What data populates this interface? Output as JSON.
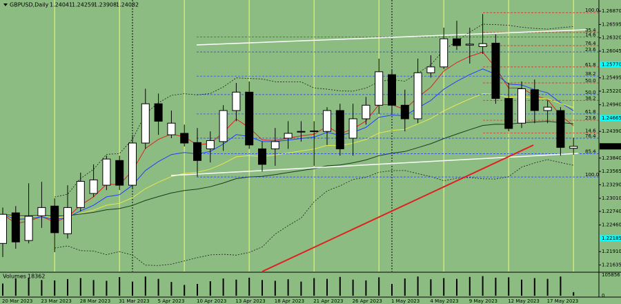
{
  "chart_data": {
    "type": "candlestick",
    "symbol": "GBPUSD,Daily",
    "categories": [
      "20 Mar 2023",
      null,
      null,
      "23 Mar 2023",
      null,
      null,
      "28 Mar 2023",
      null,
      null,
      "31 Mar 2023",
      null,
      null,
      "5 Apr 2023",
      null,
      null,
      "10 Apr 2023",
      null,
      null,
      "13 Apr 2023",
      null,
      null,
      "18 Apr 2023",
      null,
      null,
      "21 Apr 2023",
      null,
      null,
      "26 Apr 2023",
      null,
      null,
      "1 May 2023",
      null,
      null,
      "4 May 2023",
      null,
      null,
      "9 May 2023",
      null,
      null,
      "12 May 2023",
      null,
      null,
      "17 May 2023",
      null,
      null
    ],
    "open": [
      1.2208,
      1.2271,
      1.2214,
      1.2265,
      1.2285,
      1.2228,
      1.2282,
      1.2311,
      1.2328,
      1.2379,
      1.2328,
      1.2415,
      1.2496,
      1.2432,
      1.2435,
      1.2416,
      1.2403,
      1.2418,
      1.2482,
      1.252,
      1.2403,
      1.2403,
      1.2425,
      1.2438,
      1.2439,
      1.2439,
      1.2482,
      1.2425,
      1.2465,
      1.2493,
      1.2556,
      1.2493,
      1.2465,
      1.256,
      1.2572,
      1.263,
      1.2617,
      1.2614,
      1.2621,
      1.2507,
      1.2456,
      1.2525,
      1.2482,
      1.2482,
      1.24041
    ],
    "high": [
      1.2282,
      1.2285,
      1.2332,
      1.2335,
      1.2301,
      1.2328,
      1.2354,
      1.2371,
      1.2389,
      1.2389,
      1.2432,
      1.2527,
      1.2517,
      1.2482,
      1.2453,
      1.2446,
      1.2439,
      1.2493,
      1.2539,
      1.2542,
      1.2418,
      1.2446,
      1.246,
      1.246,
      1.246,
      1.2489,
      1.2496,
      1.2496,
      1.251,
      1.2589,
      1.2567,
      1.2525,
      1.2589,
      1.2596,
      1.2653,
      1.2667,
      1.2653,
      1.2681,
      1.2639,
      1.2539,
      1.2542,
      1.2546,
      1.2503,
      1.2489,
      1.24259
    ],
    "low": [
      1.218,
      1.2197,
      1.2208,
      1.224,
      1.219,
      1.2218,
      1.2274,
      1.2304,
      1.2318,
      1.2318,
      1.2322,
      1.2403,
      1.2432,
      1.2425,
      1.2408,
      1.2346,
      1.2375,
      1.2399,
      1.246,
      1.2403,
      1.2356,
      1.2368,
      1.2403,
      1.2418,
      1.2368,
      1.2411,
      1.2389,
      1.2389,
      1.2453,
      1.2475,
      1.2475,
      1.2439,
      1.2456,
      1.255,
      1.2567,
      1.2607,
      1.2579,
      1.2599,
      1.2496,
      1.2439,
      1.2446,
      1.2456,
      1.2456,
      1.2389,
      1.23908
    ],
    "close": [
      1.2268,
      1.2211,
      1.2264,
      1.2282,
      1.223,
      1.2282,
      1.2336,
      1.2339,
      1.2382,
      1.2328,
      1.2415,
      1.2496,
      1.246,
      1.2456,
      1.2415,
      1.2379,
      1.242,
      1.2482,
      1.252,
      1.2411,
      1.2371,
      1.2418,
      1.2435,
      1.2439,
      1.244,
      1.2482,
      1.2403,
      1.2465,
      1.2493,
      1.2562,
      1.2493,
      1.2465,
      1.256,
      1.2572,
      1.263,
      1.2616,
      1.2619,
      1.262,
      1.2507,
      1.2445,
      1.2527,
      1.2482,
      1.2489,
      1.2406,
      1.24082
    ],
    "bull_color": "#ffffff",
    "bear_color": "#000000",
    "ylim": [
      1.215,
      1.271
    ],
    "yticks": [
      {
        "value": 1.2687,
        "label": "1.26870"
      },
      {
        "value": 1.26595,
        "label": "1.26595"
      },
      {
        "value": 1.2632,
        "label": "1.26320"
      },
      {
        "value": 1.26045,
        "label": "1.26045"
      },
      {
        "value": 1.25495,
        "label": "1.25495"
      },
      {
        "value": 1.2522,
        "label": "1.25220"
      },
      {
        "value": 1.2494,
        "label": "1.24940"
      },
      {
        "value": 1.2439,
        "label": "1.24390"
      },
      {
        "value": 1.2384,
        "label": "1.23840"
      },
      {
        "value": 1.23565,
        "label": "1.23565"
      },
      {
        "value": 1.2329,
        "label": "1.23290"
      },
      {
        "value": 1.2301,
        "label": "1.23010"
      },
      {
        "value": 1.2274,
        "label": "1.22740"
      },
      {
        "value": 1.2246,
        "label": "1.22460"
      },
      {
        "value": 1.2191,
        "label": "1.21910"
      },
      {
        "value": 1.21635,
        "label": "1.21635"
      }
    ],
    "highlight_levels": [
      {
        "value": 1.2577,
        "label": "1.25770"
      },
      {
        "value": 1.24665,
        "label": "1.24665"
      },
      {
        "value": 1.22185,
        "label": "1.22185"
      }
    ],
    "highlight_color": "#00ffff",
    "fibonacci": [
      {
        "color": "#2038ff",
        "levels": [
          {
            "ratio": "100.0",
            "price": 1.2345
          },
          {
            "ratio": "85.4",
            "price": 1.2393
          },
          {
            "ratio": "76.4",
            "price": 1.2425
          },
          {
            "ratio": "61.8",
            "price": 1.2475
          },
          {
            "ratio": "50.0",
            "price": 1.2515
          },
          {
            "ratio": "38.2",
            "price": 1.2553
          },
          {
            "ratio": "23.6",
            "price": 1.2603
          },
          {
            "ratio": "14.6",
            "price": 1.2634
          }
        ]
      },
      {
        "color": "#e02020",
        "levels": [
          {
            "ratio": "100.0",
            "price": 1.2684
          },
          {
            "ratio": "85.4",
            "price": 1.2643
          },
          {
            "ratio": "76.4",
            "price": 1.2616
          },
          {
            "ratio": "61.8",
            "price": 1.2572
          },
          {
            "ratio": "50.0",
            "price": 1.2539
          },
          {
            "ratio": "38.2",
            "price": 1.2503
          },
          {
            "ratio": "23.6",
            "price": 1.2462
          },
          {
            "ratio": "14.6",
            "price": 1.2436
          }
        ]
      }
    ],
    "ma_colors": [
      "#e02020",
      "#2040ff",
      "#e8e850",
      "#1a3a1a"
    ],
    "band_color": "#1a1a1a",
    "volume": {
      "title": "Volumes",
      "color": "#000000",
      "ylim": [
        0,
        105856
      ],
      "yticks": [
        0,
        105856
      ],
      "values": [
        62000,
        88000,
        92000,
        80000,
        78000,
        85000,
        90000,
        80000,
        76000,
        95000,
        72000,
        98000,
        86000,
        70000,
        55000,
        60000,
        74000,
        88000,
        82000,
        92000,
        80000,
        76000,
        84000,
        72000,
        90000,
        86000,
        96000,
        82000,
        78000,
        94000,
        60000,
        88000,
        98000,
        84000,
        90000,
        86000,
        96000,
        100000,
        92000,
        94000,
        82000,
        90000,
        86000,
        98000,
        18362
      ]
    }
  }
}
